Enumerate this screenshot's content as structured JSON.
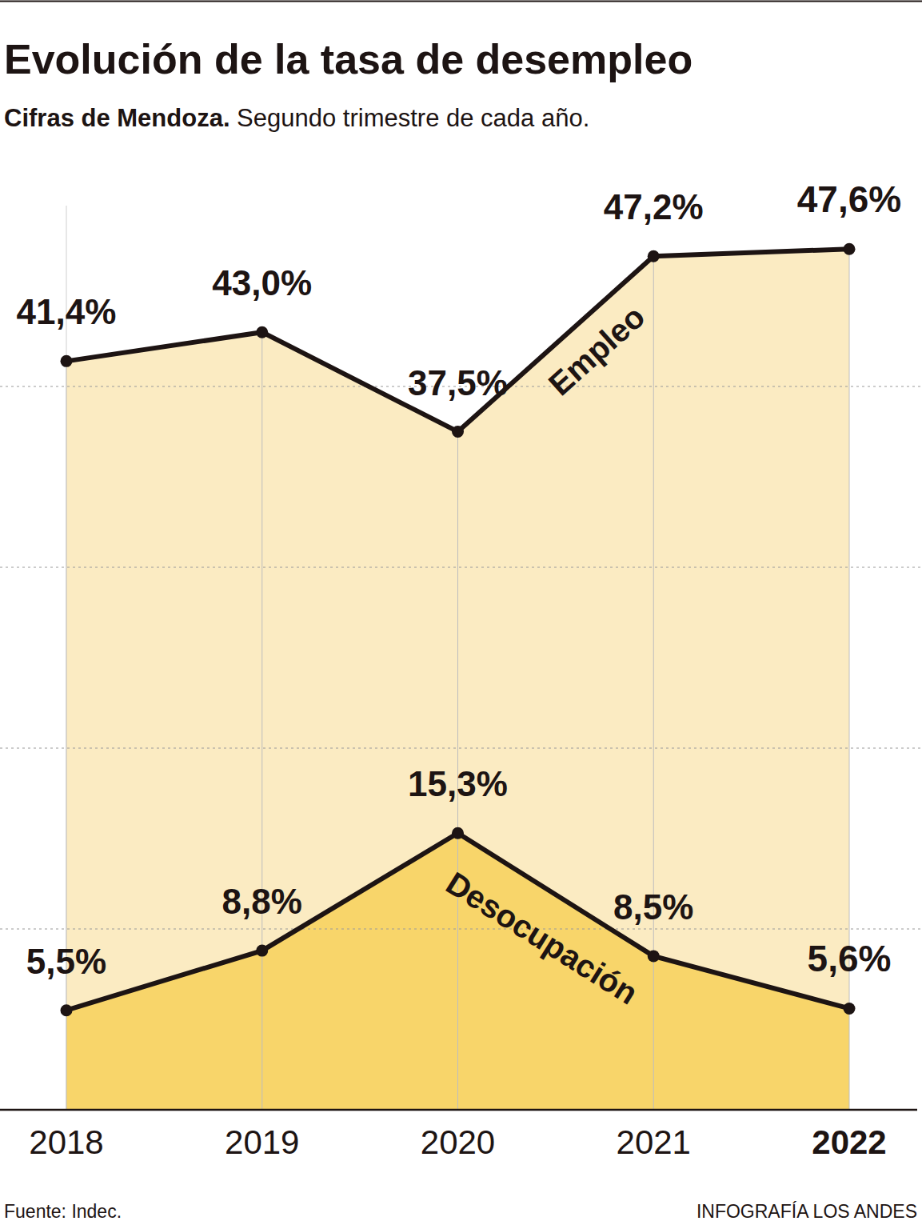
{
  "chart_data": {
    "type": "area",
    "title": "Evolución de la tasa de desempleo",
    "subtitle": [
      "Cifras de Mendoza.",
      "Segundo trimestre de cada año."
    ],
    "annotations": [
      "Fuente: Indec.",
      "INFOGRAFÍA LOS ANDES"
    ],
    "categories": [
      "2018",
      "2019",
      "2020",
      "2021",
      "2022"
    ],
    "series": [
      {
        "name": "Empleo",
        "color": "#fbebc2",
        "values": [
          41.4,
          43.0,
          37.5,
          47.2,
          47.6
        ],
        "value_labels": [
          "41,4%",
          "43,0%",
          "37,5%",
          "47,2%",
          "47,6%"
        ]
      },
      {
        "name": "Desocupación",
        "color": "#f8d56a",
        "values": [
          5.5,
          8.8,
          15.3,
          8.5,
          5.6
        ],
        "value_labels": [
          "5,5%",
          "8,8%",
          "15,3%",
          "8,5%",
          "5,6%"
        ]
      }
    ],
    "ylim": [
      0,
      50
    ],
    "yticks": [
      0,
      10,
      20,
      30,
      40
    ],
    "grid": true,
    "tick_labels": "x",
    "data_labels": true,
    "marker": "circle",
    "line_style": "solid"
  }
}
